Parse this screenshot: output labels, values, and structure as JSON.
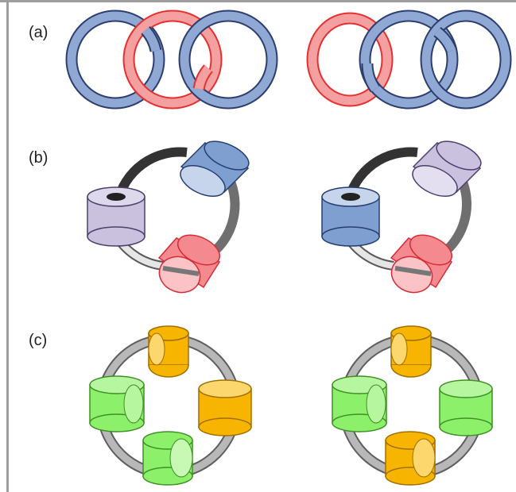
{
  "panels": [
    {
      "label": "(a)"
    },
    {
      "label": "(b)"
    },
    {
      "label": "(c)"
    }
  ],
  "colors": {
    "blue_ring": "#8fa8d4",
    "blue_ring_stroke": "#2c3d6e",
    "red_ring": "#f5a0a0",
    "red_ring_stroke": "#e63030",
    "blue_bead": "#7f9fd0",
    "purple_bead": "#c9c1dd",
    "red_bead": "#f48a90",
    "orange_bead": "#f7b400",
    "green_bead": "#8cf06a",
    "frame": "#9e9e9e"
  }
}
